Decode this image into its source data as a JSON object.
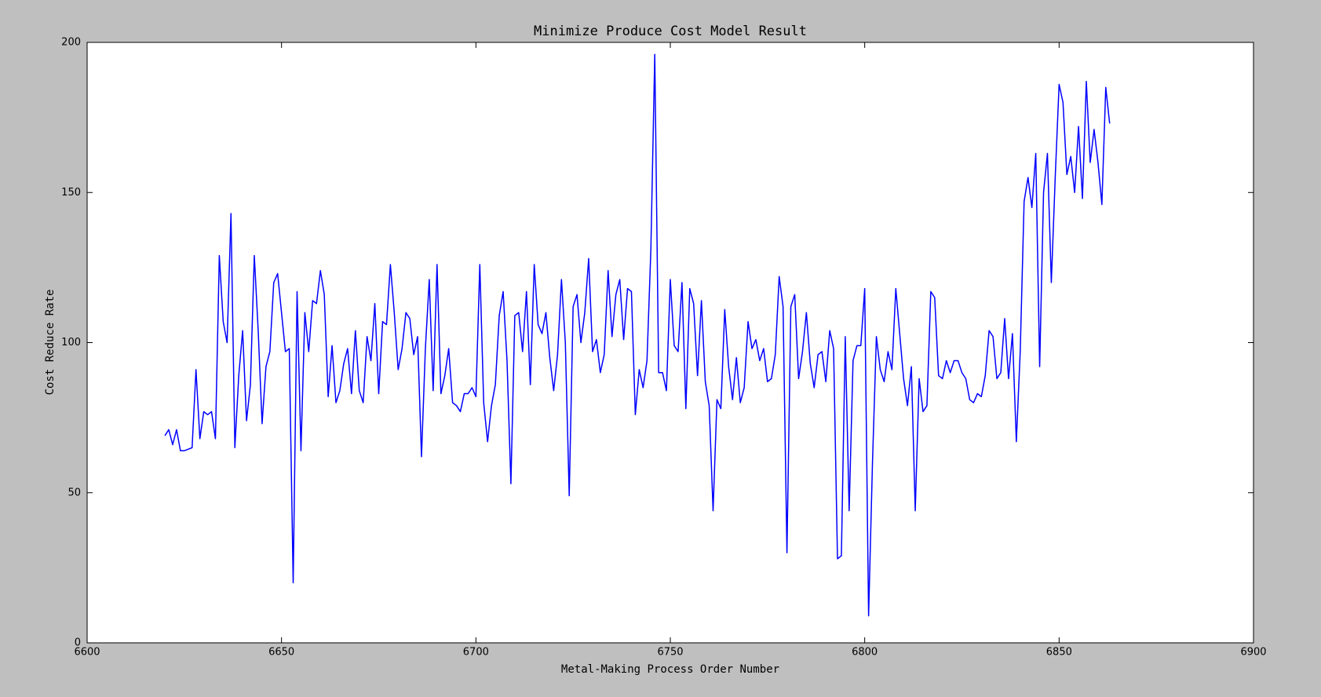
{
  "chart_data": {
    "type": "line",
    "title": "Minimize Produce Cost Model Result",
    "x_label": "Metal-Making Process Order Number",
    "y_label": "Cost Reduce Rate",
    "xlim": [
      6600,
      6900
    ],
    "xticks": [
      6600,
      6650,
      6700,
      6750,
      6800,
      6850,
      6900
    ],
    "ylim": [
      0,
      200
    ],
    "yticks": [
      0,
      50,
      100,
      150,
      200
    ],
    "grid": false,
    "series": [
      {
        "name": "Cost Reduce Rate",
        "color": "#0000ff",
        "x": [
          6620,
          6621,
          6622,
          6623,
          6624,
          6625,
          6626,
          6627,
          6628,
          6629,
          6630,
          6631,
          6632,
          6633,
          6634,
          6635,
          6636,
          6637,
          6638,
          6639,
          6640,
          6641,
          6642,
          6643,
          6644,
          6645,
          6646,
          6647,
          6648,
          6649,
          6650,
          6651,
          6652,
          6653,
          6654,
          6655,
          6656,
          6657,
          6658,
          6659,
          6660,
          6661,
          6662,
          6663,
          6664,
          6665,
          6666,
          6667,
          6668,
          6669,
          6670,
          6671,
          6672,
          6673,
          6674,
          6675,
          6676,
          6677,
          6678,
          6679,
          6680,
          6681,
          6682,
          6683,
          6684,
          6685,
          6686,
          6687,
          6688,
          6689,
          6690,
          6691,
          6692,
          6693,
          6694,
          6695,
          6696,
          6697,
          6698,
          6699,
          6700,
          6701,
          6702,
          6703,
          6704,
          6705,
          6706,
          6707,
          6708,
          6709,
          6710,
          6711,
          6712,
          6713,
          6714,
          6715,
          6716,
          6717,
          6718,
          6719,
          6720,
          6721,
          6722,
          6723,
          6724,
          6725,
          6726,
          6727,
          6728,
          6729,
          6730,
          6731,
          6732,
          6733,
          6734,
          6735,
          6736,
          6737,
          6738,
          6739,
          6740,
          6741,
          6742,
          6743,
          6744,
          6745,
          6746,
          6747,
          6748,
          6749,
          6750,
          6751,
          6752,
          6753,
          6754,
          6755,
          6756,
          6757,
          6758,
          6759,
          6760,
          6761,
          6762,
          6763,
          6764,
          6765,
          6766,
          6767,
          6768,
          6769,
          6770,
          6771,
          6772,
          6773,
          6774,
          6775,
          6776,
          6777,
          6778,
          6779,
          6780,
          6781,
          6782,
          6783,
          6784,
          6785,
          6786,
          6787,
          6788,
          6789,
          6790,
          6791,
          6792,
          6793,
          6794,
          6795,
          6796,
          6797,
          6798,
          6799,
          6800,
          6801,
          6802,
          6803,
          6804,
          6805,
          6806,
          6807,
          6808,
          6809,
          6810,
          6811,
          6812,
          6813,
          6814,
          6815,
          6816,
          6817,
          6818,
          6819,
          6820,
          6821,
          6822,
          6823,
          6824,
          6825,
          6826,
          6827,
          6828,
          6829,
          6830,
          6831,
          6832,
          6833,
          6834,
          6835,
          6836,
          6837,
          6838,
          6839,
          6840,
          6841,
          6842,
          6843,
          6844,
          6845,
          6846,
          6847,
          6848,
          6849,
          6850,
          6851,
          6852,
          6853,
          6854,
          6855,
          6856,
          6857,
          6858,
          6859,
          6860,
          6861,
          6862,
          6863
        ],
        "values": [
          69,
          71,
          66,
          71,
          64,
          64,
          64.5,
          65,
          91,
          68,
          77,
          76,
          77,
          68,
          129,
          107,
          100,
          143,
          65,
          89,
          104,
          74,
          86,
          129,
          104,
          73,
          92,
          97,
          120,
          123,
          110,
          97,
          98,
          20,
          117,
          64,
          110,
          97,
          114,
          113,
          124,
          116,
          82,
          99,
          80,
          84,
          93,
          98,
          83,
          104,
          84,
          80,
          102,
          94,
          113,
          83,
          107,
          106,
          126,
          110,
          91,
          98,
          110,
          108,
          96,
          102,
          62,
          98,
          121,
          84,
          126,
          83,
          89,
          98,
          80,
          79,
          77,
          83,
          83,
          85,
          82,
          126,
          80,
          67,
          79,
          86,
          109,
          117,
          94,
          53,
          109,
          110,
          97,
          117,
          86,
          126,
          106,
          103,
          110,
          95,
          84,
          96,
          121,
          100,
          49,
          112,
          116,
          100,
          110,
          128,
          97,
          101,
          90,
          96,
          124,
          102,
          116,
          121,
          101,
          118,
          117,
          76,
          91,
          85,
          94,
          131,
          196,
          90,
          90,
          84,
          121,
          99,
          97,
          120,
          78,
          118,
          113,
          89,
          114,
          87,
          79,
          44,
          81,
          78,
          111,
          92,
          81,
          95,
          80,
          85,
          107,
          98,
          101,
          94,
          98,
          87,
          88,
          96,
          122,
          112,
          30,
          112,
          116,
          88,
          97,
          110,
          93,
          85,
          96,
          97,
          87,
          104,
          98,
          28,
          29,
          102,
          44,
          94,
          99,
          99,
          118,
          9,
          60,
          102,
          91,
          87,
          97,
          91,
          118,
          103,
          88,
          79,
          92,
          44,
          88,
          77,
          79,
          117,
          115,
          89,
          88,
          94,
          90,
          94,
          94,
          90,
          88,
          81,
          80,
          83,
          82,
          89,
          104,
          102,
          88,
          90,
          108,
          88,
          103,
          67,
          97,
          147,
          155,
          145,
          163,
          92,
          150,
          163,
          120,
          155,
          186,
          180,
          156,
          162,
          150,
          172,
          148,
          187,
          160,
          171,
          160,
          146,
          185,
          173
        ]
      }
    ]
  }
}
